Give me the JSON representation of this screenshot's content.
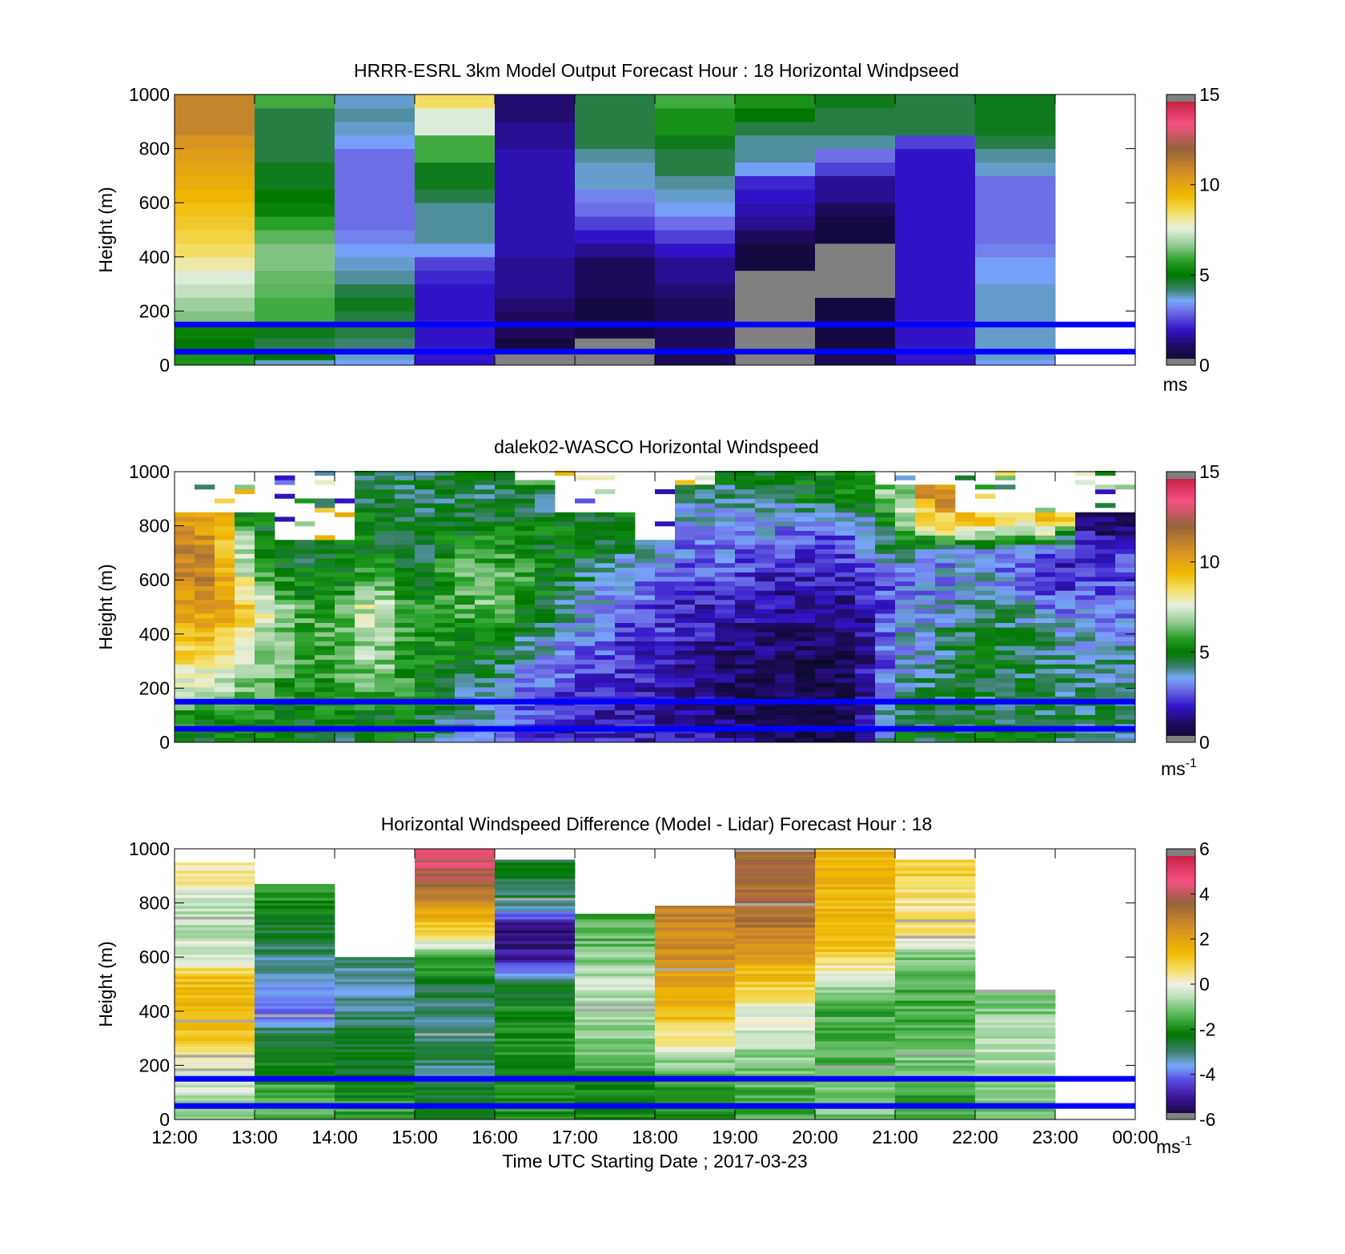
{
  "figure": {
    "xlabel": "Time UTC  Starting Date ; 2017-03-23",
    "x_tick_labels": [
      "12:00",
      "13:00",
      "14:00",
      "15:00",
      "16:00",
      "17:00",
      "18:00",
      "19:00",
      "20:00",
      "21:00",
      "22:00",
      "23:00",
      "00:00"
    ],
    "y_tick_labels": [
      "0",
      "200",
      "400",
      "600",
      "800",
      "1000"
    ],
    "reference_lines_m": [
      50,
      150
    ],
    "reference_line_color": "#0000ff"
  },
  "chart_data": [
    {
      "type": "heatmap",
      "title": "HRRR-ESRL 3km Model Output   Forecast Hour : 18 Horizontal Windpseed",
      "ylabel": "Height (m)",
      "xlim": [
        12,
        24
      ],
      "ylim": [
        0,
        1000
      ],
      "colorbar": {
        "min": 0,
        "max": 15,
        "ticks": [
          "0",
          "5",
          "10",
          "15"
        ],
        "unit_base": "ms",
        "unit_exp": "",
        "colormap": "speed"
      },
      "hours": [
        12,
        13,
        14,
        15,
        16,
        17,
        18,
        19,
        20,
        21,
        22
      ],
      "levels_m": [
        0,
        20,
        40,
        60,
        100,
        150,
        200,
        250,
        300,
        350,
        400,
        450,
        500,
        550,
        600,
        650,
        700,
        750,
        800,
        850,
        900,
        950,
        1000
      ],
      "values": [
        [
          5.5,
          5.5,
          5,
          5,
          5.2,
          6.5,
          6.8,
          7.2,
          7.5,
          8,
          8.5,
          8.8,
          9,
          9.2,
          9.5,
          9.8,
          10,
          10.2,
          10.5,
          11,
          11,
          11
        ],
        [
          3.8,
          5,
          5,
          4.5,
          4.8,
          6,
          6,
          6.2,
          6.3,
          6.5,
          6.5,
          6.2,
          5.8,
          5.2,
          5,
          4.8,
          4.8,
          4.5,
          4.5,
          4.5,
          4.5,
          6
        ],
        [
          3.5,
          3.8,
          4,
          4.2,
          4.5,
          4.5,
          4.8,
          4.5,
          4,
          3.8,
          3.5,
          3.2,
          3,
          3,
          3,
          3,
          3,
          3,
          3.5,
          3.8,
          4,
          3.8
        ],
        [
          2,
          2,
          2,
          2,
          2,
          2,
          2,
          2,
          2.2,
          2.5,
          3.5,
          4,
          4,
          4,
          4.5,
          4.8,
          4.8,
          6,
          6,
          7.5,
          7.5,
          8.5
        ],
        [
          0,
          0,
          0,
          0.5,
          1,
          1,
          1.2,
          1.5,
          1.5,
          1.5,
          1.8,
          1.8,
          1.8,
          1.8,
          1.8,
          1.8,
          1.8,
          1.8,
          1.5,
          1.5,
          1.2,
          1.2
        ],
        [
          0,
          0,
          0,
          0,
          0.5,
          0.5,
          0.5,
          1,
          1,
          1,
          1.5,
          2,
          2.5,
          3,
          3.2,
          3.8,
          3.8,
          4,
          4.5,
          4.5,
          4.5,
          4.5
        ],
        [
          1,
          1,
          1,
          1,
          1,
          1,
          1,
          1.2,
          1.5,
          1.5,
          2,
          2.5,
          3,
          3.5,
          3.8,
          4,
          4.5,
          4.5,
          4.8,
          5.5,
          5.5,
          6
        ],
        [
          0,
          0,
          0,
          0,
          0,
          0,
          0,
          0,
          0,
          0.5,
          0.5,
          1,
          1.5,
          1.8,
          2,
          2.2,
          3.5,
          4,
          4,
          4.5,
          5,
          5.5
        ],
        [
          1,
          1,
          0.5,
          0.5,
          0.5,
          0.5,
          0.5,
          0,
          0,
          0,
          0,
          0.5,
          0.5,
          1,
          1.5,
          1.5,
          2.5,
          3,
          4,
          4.5,
          4.5,
          4.8
        ],
        [
          2,
          2,
          2,
          2,
          2,
          2,
          2,
          2,
          2,
          2,
          2,
          2,
          2,
          2,
          2,
          2,
          2,
          2,
          2.5,
          4.5,
          4.5,
          4.5
        ],
        [
          3.5,
          3.8,
          3.8,
          3.8,
          3.8,
          3.8,
          3.8,
          3.8,
          3.5,
          3.5,
          3.2,
          3,
          3,
          3,
          3,
          3,
          3.8,
          4,
          4.5,
          4.8,
          4.8,
          4.8
        ]
      ]
    },
    {
      "type": "heatmap",
      "title": "dalek02-WASCO  Horizontal Windspeed",
      "ylabel": "Height (m)",
      "xlim": [
        12,
        24
      ],
      "ylim": [
        0,
        1000
      ],
      "colorbar": {
        "min": 0,
        "max": 15,
        "ticks": [
          "0",
          "5",
          "10",
          "15"
        ],
        "unit_base": "ms",
        "unit_exp": "-1",
        "colormap": "speed"
      },
      "key_hours": [
        12.0,
        12.5,
        13.0,
        13.5,
        14.0,
        14.5,
        15.0,
        15.5,
        16.0,
        16.5,
        17.0,
        17.5,
        18.0,
        18.5,
        19.0,
        19.5,
        20.0,
        20.5,
        21.0,
        21.5,
        22.0,
        22.5,
        23.0,
        23.4
      ],
      "key_levels_m": [
        0,
        100,
        200,
        300,
        400,
        500,
        600,
        700,
        800,
        900,
        1000
      ],
      "key_values": [
        [
          5.0,
          5.5,
          7.5,
          8.5,
          9.0,
          10.0,
          10.5,
          11.0,
          10.5,
          null,
          null
        ],
        [
          5.0,
          5.5,
          7.0,
          8.5,
          9.5,
          10.5,
          11.0,
          11.0,
          10.0,
          null,
          null
        ],
        [
          5.0,
          5.5,
          6.5,
          7.0,
          7.5,
          8.5,
          6.5,
          5.5,
          5.0,
          null,
          null
        ],
        [
          5.0,
          5.0,
          5.5,
          6.0,
          6.0,
          6.0,
          5.0,
          4.5,
          null,
          null,
          null
        ],
        [
          4.5,
          5.0,
          5.5,
          6.0,
          6.0,
          5.5,
          5.0,
          5.0,
          null,
          null,
          null
        ],
        [
          5.0,
          5.0,
          6.5,
          7.0,
          7.0,
          8.0,
          6.0,
          5.0,
          5.0,
          4.5,
          4.5
        ],
        [
          5.0,
          5.0,
          5.5,
          5.5,
          5.5,
          5.5,
          5.0,
          4.5,
          4.5,
          4.5,
          4.5
        ],
        [
          4.0,
          4.0,
          4.5,
          5.0,
          5.5,
          6.0,
          6.0,
          5.5,
          5.0,
          4.5,
          4.5
        ],
        [
          3.5,
          3.5,
          4.0,
          4.5,
          5.5,
          6.5,
          6.5,
          6.0,
          5.0,
          4.5,
          4.5
        ],
        [
          2.5,
          2.5,
          3.0,
          3.5,
          4.0,
          5.0,
          5.5,
          5.0,
          5.0,
          4.5,
          null
        ],
        [
          2.0,
          2.0,
          2.5,
          3.0,
          3.5,
          4.0,
          4.5,
          5.0,
          5.0,
          null,
          null
        ],
        [
          2.0,
          2.0,
          2.0,
          2.5,
          2.5,
          3.0,
          3.5,
          4.5,
          5.0,
          null,
          null
        ],
        [
          2.0,
          2.0,
          2.0,
          2.0,
          2.5,
          2.5,
          3.0,
          3.5,
          null,
          null,
          null
        ],
        [
          2.0,
          1.5,
          1.5,
          1.5,
          2.0,
          2.0,
          2.5,
          3.0,
          3.5,
          4.0,
          null
        ],
        [
          1.5,
          1.0,
          1.0,
          1.0,
          1.5,
          2.0,
          2.5,
          3.0,
          3.5,
          4.0,
          5.0
        ],
        [
          1.0,
          1.0,
          1.0,
          1.0,
          1.0,
          1.5,
          2.0,
          2.5,
          3.5,
          4.0,
          5.0
        ],
        [
          1.0,
          0.5,
          0.5,
          0.5,
          1.0,
          1.5,
          2.0,
          2.5,
          3.0,
          5.0,
          5.5
        ],
        [
          1.0,
          1.0,
          1.0,
          1.0,
          1.0,
          1.5,
          2.0,
          2.5,
          3.0,
          5.0,
          5.0
        ],
        [
          5.0,
          4.5,
          4.0,
          3.5,
          3.5,
          3.0,
          3.0,
          4.5,
          5.5,
          6.5,
          null
        ],
        [
          4.5,
          4.5,
          4.5,
          4.0,
          4.0,
          3.5,
          3.0,
          3.5,
          9.0,
          10.5,
          null
        ],
        [
          5.0,
          4.5,
          4.5,
          5.0,
          4.5,
          4.0,
          4.0,
          3.0,
          9.0,
          null,
          null
        ],
        [
          5.0,
          4.5,
          4.5,
          4.5,
          4.5,
          4.0,
          3.0,
          3.0,
          8.0,
          null,
          null
        ],
        [
          4.5,
          4.5,
          4.5,
          4.0,
          4.0,
          3.0,
          2.0,
          2.0,
          9.0,
          null,
          null
        ],
        [
          4.0,
          4.5,
          4.0,
          4.0,
          3.5,
          3.0,
          2.5,
          2.5,
          1.0,
          null,
          null
        ]
      ]
    },
    {
      "type": "heatmap",
      "title": "Horizontal Windspeed Difference (Model - Lidar) Forecast Hour : 18",
      "ylabel": "Height (m)",
      "xlim": [
        12,
        24
      ],
      "ylim": [
        0,
        1000
      ],
      "colorbar": {
        "min": -6,
        "max": 6,
        "ticks": [
          "-6",
          "-4",
          "-2",
          "0",
          "2",
          "4",
          "6"
        ],
        "unit_base": "ms",
        "unit_exp": "-1",
        "colormap": "diff"
      },
      "hours": [
        12,
        13,
        14,
        15,
        16,
        17,
        18,
        19,
        20,
        21,
        22
      ],
      "tops_m": [
        950,
        870,
        600,
        1000,
        960,
        760,
        790,
        1000,
        1000,
        960,
        480
      ],
      "key_levels_m": [
        0,
        100,
        200,
        300,
        400,
        500,
        600,
        700,
        800,
        900,
        1000
      ],
      "key_values": [
        [
          -1.0,
          -0.5,
          0.0,
          1.0,
          1.5,
          1.5,
          0.0,
          -0.5,
          -0.5,
          0.5,
          0.5
        ],
        [
          -1.5,
          -1.5,
          -2.0,
          -2.5,
          -4.0,
          -3.5,
          -3.0,
          -2.5,
          -2.0,
          -1.0,
          -1.0
        ],
        [
          -1.5,
          -2.0,
          -2.5,
          -2.5,
          -3.0,
          -3.5,
          -3.0,
          -2.5,
          -2.5,
          -2.5,
          -2.5
        ],
        [
          -2.5,
          -2.5,
          -3.0,
          -3.0,
          -3.0,
          -2.5,
          -1.5,
          1.0,
          2.5,
          4.0,
          4.5
        ],
        [
          -2.0,
          -2.0,
          -2.0,
          -2.0,
          -2.0,
          -2.5,
          -5.0,
          -5.5,
          -3.0,
          -2.5,
          -2.5
        ],
        [
          -2.0,
          -2.0,
          -1.5,
          -1.0,
          -0.5,
          -0.5,
          -1.0,
          -1.5,
          -1.5,
          -1.5,
          -1.5
        ],
        [
          -2.0,
          -2.0,
          -1.0,
          0.5,
          1.5,
          2.0,
          2.5,
          2.5,
          3.0,
          3.0,
          3.0
        ],
        [
          -1.5,
          -1.5,
          -1.0,
          -0.5,
          0.0,
          1.0,
          2.0,
          3.0,
          3.5,
          3.5,
          3.5
        ],
        [
          -1.0,
          -1.0,
          -1.5,
          -1.5,
          -1.5,
          -0.5,
          1.0,
          1.5,
          1.5,
          1.5,
          1.5
        ],
        [
          -1.5,
          -1.5,
          -1.0,
          -1.5,
          -1.5,
          -1.5,
          -1.0,
          0.5,
          0.5,
          1.0,
          1.0
        ],
        [
          -1.0,
          -1.0,
          -0.5,
          -0.5,
          -1.0,
          -1.0,
          -1.0,
          -1.0,
          -1.0,
          -1.0,
          -1.0
        ]
      ]
    }
  ]
}
